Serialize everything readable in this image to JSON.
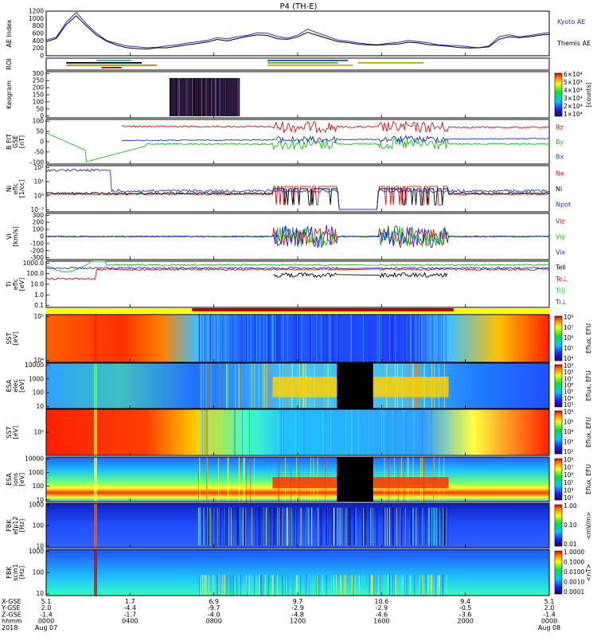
{
  "title": "P4 (TH-E)",
  "colors": {
    "blue": "#1f2fd0",
    "red": "#e01010",
    "green": "#10c010",
    "black": "#000000",
    "yellow": "#ffff00",
    "darkred": "#c00000"
  },
  "chart_data": [
    {
      "type": "line",
      "name": "ae-index",
      "ylabel": "AE Index",
      "ylim": [
        0,
        1200
      ],
      "yticks": [
        "0",
        "200",
        "400",
        "600",
        "800",
        "1000",
        "1200"
      ],
      "series": [
        {
          "name": "Kyoto AE",
          "color": "#1f2fd0",
          "values": [
            420,
            500,
            900,
            1150,
            850,
            600,
            420,
            320,
            260,
            230,
            210,
            230,
            260,
            300,
            340,
            380,
            420,
            480,
            440,
            500,
            560,
            620,
            600,
            520,
            480,
            560,
            700,
            600,
            520,
            420,
            380,
            360,
            320,
            300,
            340,
            360,
            400,
            380,
            340,
            300,
            280,
            260,
            230,
            220,
            260,
            500,
            560,
            520,
            540,
            600,
            620
          ]
        },
        {
          "name": "Themis AE",
          "color": "#000000",
          "values": [
            380,
            460,
            850,
            1080,
            800,
            560,
            380,
            290,
            230,
            200,
            190,
            210,
            230,
            260,
            300,
            330,
            380,
            430,
            400,
            460,
            510,
            560,
            540,
            470,
            440,
            510,
            630,
            540,
            470,
            380,
            340,
            320,
            290,
            270,
            300,
            330,
            360,
            340,
            300,
            270,
            250,
            230,
            200,
            200,
            240,
            450,
            510,
            480,
            500,
            550,
            570
          ]
        }
      ]
    },
    {
      "type": "timeline",
      "name": "roi",
      "ylabel": "ROI",
      "bars": [
        {
          "color": "#20c0c0",
          "start": 0.1,
          "end": 0.17,
          "row": 0
        },
        {
          "color": "#000000",
          "start": 0.04,
          "end": 0.19,
          "row": 1
        },
        {
          "color": "#d08000",
          "start": 0.04,
          "end": 0.22,
          "row": 2
        },
        {
          "color": "#c00000",
          "start": 0.11,
          "end": 0.15,
          "row": 3
        },
        {
          "color": "#3040d0",
          "start": 0.44,
          "end": 0.6,
          "row": 0
        },
        {
          "color": "#30c030",
          "start": 0.44,
          "end": 0.58,
          "row": 1
        },
        {
          "color": "#c0b000",
          "start": 0.44,
          "end": 0.61,
          "row": 2
        },
        {
          "color": "#c0b000",
          "start": 0.62,
          "end": 0.75,
          "row": 1
        }
      ]
    },
    {
      "type": "heatmap",
      "name": "keogram",
      "ylabel": "Keogram",
      "ylim": [
        0,
        300
      ],
      "yticks": [
        "0",
        "50",
        "100",
        "150",
        "200",
        "250",
        "300"
      ],
      "colorbar": {
        "label": "[counts]",
        "ticks": [
          "1×10⁴",
          "2×10⁴",
          "3×10⁴",
          "4×10⁴",
          "5×10⁴",
          "6×10⁴"
        ]
      }
    },
    {
      "type": "line",
      "name": "b-field",
      "ylabel": "B FIT",
      "sublabel": "GSE",
      "unit": "[nT]",
      "ylim": [
        -100,
        100
      ],
      "yticks": [
        "-100",
        "-50",
        "0",
        "50",
        "100"
      ],
      "series": [
        {
          "name": "Bz",
          "color": "#e01010"
        },
        {
          "name": "By",
          "color": "#10c010"
        },
        {
          "name": "Bx",
          "color": "#1f2fd0"
        }
      ]
    },
    {
      "type": "line",
      "name": "density",
      "ylabel": "Ni",
      "sublabel": "eflc",
      "unit": "[1/cc]",
      "yticks": [
        "10⁻³",
        "10⁰",
        "10¹",
        "10²"
      ],
      "series": [
        {
          "name": "Ne",
          "color": "#e01010"
        },
        {
          "name": "Ni",
          "color": "#000000"
        },
        {
          "name": "Npot",
          "color": "#1f2fd0"
        }
      ]
    },
    {
      "type": "line",
      "name": "velocity",
      "ylabel": "Vi",
      "unit": "[km/s]",
      "yticks": [
        "-300",
        "-200",
        "-100",
        "0",
        "100",
        "200",
        "300"
      ],
      "series": [
        {
          "name": "Viz",
          "color": "#e01010"
        },
        {
          "name": "Viy",
          "color": "#10c010"
        },
        {
          "name": "Vix",
          "color": "#1f2fd0"
        }
      ]
    },
    {
      "type": "line",
      "name": "temperature",
      "ylabel": "Ti",
      "sublabel": "eflc",
      "unit": "[eV]",
      "yticks": [
        "0.1",
        "1.0",
        "10.0",
        "100.0",
        "1000.0"
      ],
      "series": [
        {
          "name": "Tell",
          "color": "#000000"
        },
        {
          "name": "Te⊥",
          "color": "#e01010"
        },
        {
          "name": "Ti||",
          "color": "#10c010"
        },
        {
          "name": "Ti⊥",
          "color": "#1f2fd0"
        }
      ]
    },
    {
      "type": "heatmap",
      "name": "sst-e",
      "ylabel": "SST",
      "unit": "[eV]",
      "yticks": [
        "10⁴",
        "10⁵"
      ],
      "colorbar": {
        "label": "Eflux, EFU",
        "ticks": [
          "10⁴",
          "10⁵",
          "10⁶",
          "10⁷",
          "10⁸"
        ]
      }
    },
    {
      "type": "heatmap",
      "name": "esa-e",
      "ylabel": "ESA",
      "sublabel": "elec",
      "unit": "[eV]",
      "yticks": [
        "10",
        "100",
        "1000",
        "10000"
      ],
      "colorbar": {
        "label": "Eflux, EFU",
        "ticks": [
          "10³",
          "10⁴",
          "10⁵",
          "10⁶",
          "10⁷",
          "10⁸",
          "10⁹"
        ]
      }
    },
    {
      "type": "heatmap",
      "name": "sst-i",
      "ylabel": "SST",
      "unit": "[eV]",
      "yticks": [
        "10⁵"
      ],
      "colorbar": {
        "label": "Eflux, EFU",
        "ticks": [
          "10²",
          "10³",
          "10⁴",
          "10⁵",
          "10⁶"
        ]
      }
    },
    {
      "type": "heatmap",
      "name": "esa-i",
      "ylabel": "ESA",
      "sublabel": "ions",
      "unit": "[eV]",
      "yticks": [
        "10",
        "100",
        "1000",
        "10000"
      ],
      "colorbar": {
        "label": "Eflux, EFU",
        "ticks": [
          "10³",
          "10⁴",
          "10⁵",
          "10⁶",
          "10⁷",
          "10⁸"
        ]
      }
    },
    {
      "type": "heatmap",
      "name": "fbk-e",
      "ylabel": "FBK",
      "sublabel": "efp12",
      "unit": "[Hz]",
      "yticks": [
        "10",
        "100",
        "1000"
      ],
      "colorbar": {
        "label": "<mV/m>",
        "ticks": [
          "0.01",
          "0.10",
          "1.00"
        ]
      }
    },
    {
      "type": "heatmap",
      "name": "fbk-b",
      "ylabel": "FBK",
      "sublabel": "scm1",
      "unit": "[Hz]",
      "yticks": [
        "10",
        "100",
        "1000"
      ],
      "colorbar": {
        "label": "<nT>",
        "ticks": [
          "0.0001",
          "0.0010",
          "0.0100",
          "0.1000",
          "1.0000"
        ]
      }
    }
  ],
  "ephemeris": {
    "labels": [
      "X-GSE",
      "Y-GSE",
      "Z-GSE",
      "hhmm",
      "2018"
    ],
    "columns": [
      {
        "values": [
          "5.1",
          "2.0",
          "-1.4",
          "0000",
          "Aug 07"
        ]
      },
      {
        "values": [
          "1.7",
          "-4.4",
          "-1.7",
          "0400",
          ""
        ]
      },
      {
        "values": [
          "6.9",
          "-9.7",
          "-4.0",
          "0800",
          ""
        ]
      },
      {
        "values": [
          "9.7",
          "-2.9",
          "-4.8",
          "1200",
          ""
        ]
      },
      {
        "values": [
          "10.6",
          "-2.9",
          "-4.6",
          "1600",
          ""
        ]
      },
      {
        "values": [
          "9.4",
          "-0.5",
          "-3.6",
          "2000",
          ""
        ]
      },
      {
        "values": [
          "5.1",
          "2.0",
          "-1.4",
          "0000",
          "Aug 08"
        ]
      }
    ]
  }
}
